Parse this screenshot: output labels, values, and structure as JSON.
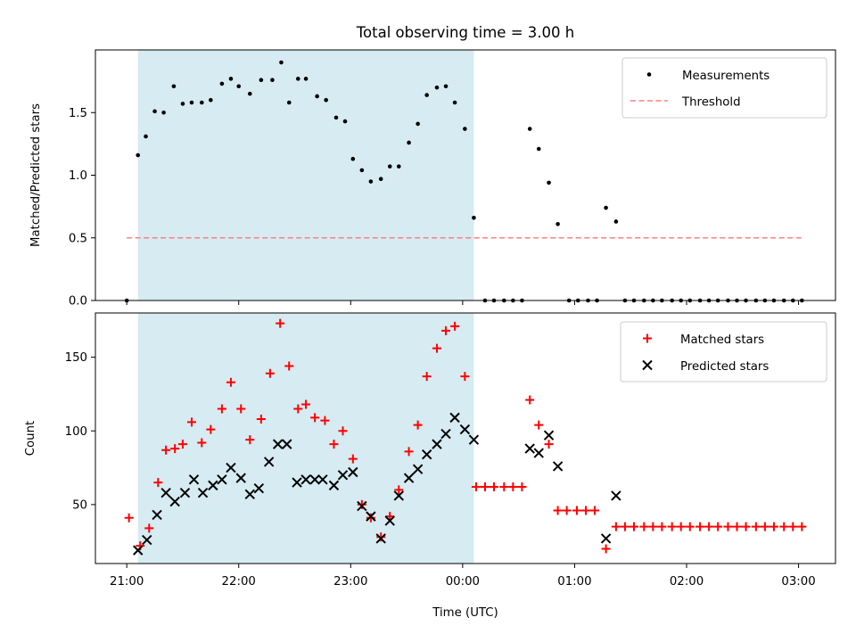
{
  "chart_data": [
    {
      "type": "scatter",
      "title": "Total observing time = 3.00 h",
      "xlabel": "",
      "ylabel": "Matched/Predicted stars",
      "x_unit": "hours after 21:00 UTC",
      "xlim": [
        -0.28,
        6.33
      ],
      "ylim": [
        0.0,
        2.0
      ],
      "yticks": [
        0.0,
        0.5,
        1.0,
        1.5
      ],
      "ytick_labels": [
        "0.0",
        "0.5",
        "1.0",
        "1.5"
      ],
      "xticks": [
        0,
        1,
        2,
        3,
        4,
        5,
        6
      ],
      "shaded_span": [
        0.1,
        3.1
      ],
      "shade_color": "#add8e6",
      "legend": {
        "placement": "top-right",
        "entries": [
          "Measurements",
          "Threshold"
        ]
      },
      "threshold": {
        "name": "Threshold",
        "y": 0.5,
        "x_range": [
          0,
          6.05
        ],
        "color": "#ff7f7f",
        "style": "dashed"
      },
      "series": [
        {
          "name": "Measurements",
          "color": "#000000",
          "points": [
            [
              0.0,
              0.0
            ],
            [
              0.1,
              1.16
            ],
            [
              0.17,
              1.31
            ],
            [
              0.25,
              1.51
            ],
            [
              0.33,
              1.5
            ],
            [
              0.42,
              1.71
            ],
            [
              0.5,
              1.57
            ],
            [
              0.58,
              1.58
            ],
            [
              0.67,
              1.58
            ],
            [
              0.75,
              1.6
            ],
            [
              0.85,
              1.73
            ],
            [
              0.93,
              1.77
            ],
            [
              1.0,
              1.71
            ],
            [
              1.1,
              1.65
            ],
            [
              1.2,
              1.76
            ],
            [
              1.3,
              1.76
            ],
            [
              1.38,
              1.9
            ],
            [
              1.45,
              1.58
            ],
            [
              1.53,
              1.77
            ],
            [
              1.6,
              1.77
            ],
            [
              1.7,
              1.63
            ],
            [
              1.78,
              1.6
            ],
            [
              1.87,
              1.46
            ],
            [
              1.95,
              1.43
            ],
            [
              2.02,
              1.13
            ],
            [
              2.1,
              1.04
            ],
            [
              2.18,
              0.95
            ],
            [
              2.27,
              0.97
            ],
            [
              2.35,
              1.07
            ],
            [
              2.43,
              1.07
            ],
            [
              2.52,
              1.26
            ],
            [
              2.6,
              1.41
            ],
            [
              2.68,
              1.64
            ],
            [
              2.77,
              1.7
            ],
            [
              2.85,
              1.71
            ],
            [
              2.93,
              1.58
            ],
            [
              3.02,
              1.37
            ],
            [
              3.1,
              0.66
            ],
            [
              3.2,
              0.0
            ],
            [
              3.28,
              0.0
            ],
            [
              3.37,
              0.0
            ],
            [
              3.45,
              0.0
            ],
            [
              3.53,
              0.0
            ],
            [
              3.6,
              1.37
            ],
            [
              3.68,
              1.21
            ],
            [
              3.77,
              0.94
            ],
            [
              3.85,
              0.61
            ],
            [
              3.95,
              0.0
            ],
            [
              4.03,
              0.0
            ],
            [
              4.12,
              0.0
            ],
            [
              4.2,
              0.0
            ],
            [
              4.28,
              0.74
            ],
            [
              4.37,
              0.63
            ],
            [
              4.45,
              0.0
            ],
            [
              4.53,
              0.0
            ],
            [
              4.62,
              0.0
            ],
            [
              4.7,
              0.0
            ],
            [
              4.78,
              0.0
            ],
            [
              4.87,
              0.0
            ],
            [
              4.95,
              0.0
            ],
            [
              5.03,
              0.0
            ],
            [
              5.12,
              0.0
            ],
            [
              5.2,
              0.0
            ],
            [
              5.28,
              0.0
            ],
            [
              5.37,
              0.0
            ],
            [
              5.45,
              0.0
            ],
            [
              5.53,
              0.0
            ],
            [
              5.62,
              0.0
            ],
            [
              5.7,
              0.0
            ],
            [
              5.78,
              0.0
            ],
            [
              5.87,
              0.0
            ],
            [
              5.95,
              0.0
            ],
            [
              6.03,
              0.0
            ]
          ]
        }
      ]
    },
    {
      "type": "scatter",
      "title": "",
      "xlabel": "Time (UTC)",
      "ylabel": "Count",
      "x_unit": "hours after 21:00 UTC",
      "xlim": [
        -0.28,
        6.33
      ],
      "ylim": [
        10,
        180
      ],
      "yticks": [
        50,
        100,
        150
      ],
      "ytick_labels": [
        "50",
        "100",
        "150"
      ],
      "xticks": [
        0,
        1,
        2,
        3,
        4,
        5,
        6
      ],
      "xtick_labels": [
        "21:00",
        "22:00",
        "23:00",
        "00:00",
        "01:00",
        "02:00",
        "03:00"
      ],
      "shaded_span": [
        0.1,
        3.1
      ],
      "shade_color": "#add8e6",
      "legend": {
        "placement": "top-right",
        "entries": [
          "Matched stars",
          "Predicted stars"
        ]
      },
      "series": [
        {
          "name": "Matched stars",
          "marker": "plus",
          "color": "#ff0000",
          "points": [
            [
              0.02,
              41
            ],
            [
              0.12,
              22
            ],
            [
              0.2,
              34
            ],
            [
              0.28,
              65
            ],
            [
              0.35,
              87
            ],
            [
              0.43,
              88
            ],
            [
              0.5,
              91
            ],
            [
              0.58,
              106
            ],
            [
              0.67,
              92
            ],
            [
              0.75,
              101
            ],
            [
              0.85,
              115
            ],
            [
              0.93,
              133
            ],
            [
              1.02,
              115
            ],
            [
              1.1,
              94
            ],
            [
              1.2,
              108
            ],
            [
              1.28,
              139
            ],
            [
              1.37,
              173
            ],
            [
              1.45,
              144
            ],
            [
              1.53,
              115
            ],
            [
              1.6,
              118
            ],
            [
              1.68,
              109
            ],
            [
              1.77,
              107
            ],
            [
              1.85,
              91
            ],
            [
              1.93,
              100
            ],
            [
              2.02,
              81
            ],
            [
              2.1,
              50
            ],
            [
              2.18,
              41
            ],
            [
              2.27,
              28
            ],
            [
              2.35,
              42
            ],
            [
              2.43,
              60
            ],
            [
              2.52,
              86
            ],
            [
              2.6,
              104
            ],
            [
              2.68,
              137
            ],
            [
              2.77,
              156
            ],
            [
              2.85,
              168
            ],
            [
              2.93,
              171
            ],
            [
              3.02,
              137
            ],
            [
              3.12,
              62
            ],
            [
              3.2,
              62
            ],
            [
              3.28,
              62
            ],
            [
              3.37,
              62
            ],
            [
              3.45,
              62
            ],
            [
              3.53,
              62
            ],
            [
              3.6,
              121
            ],
            [
              3.68,
              104
            ],
            [
              3.77,
              91
            ],
            [
              3.85,
              46
            ],
            [
              3.93,
              46
            ],
            [
              4.02,
              46
            ],
            [
              4.1,
              46
            ],
            [
              4.18,
              46
            ],
            [
              4.28,
              20
            ],
            [
              4.37,
              35
            ],
            [
              4.45,
              35
            ],
            [
              4.53,
              35
            ],
            [
              4.62,
              35
            ],
            [
              4.7,
              35
            ],
            [
              4.78,
              35
            ],
            [
              4.87,
              35
            ],
            [
              4.95,
              35
            ],
            [
              5.03,
              35
            ],
            [
              5.12,
              35
            ],
            [
              5.2,
              35
            ],
            [
              5.28,
              35
            ],
            [
              5.37,
              35
            ],
            [
              5.45,
              35
            ],
            [
              5.53,
              35
            ],
            [
              5.62,
              35
            ],
            [
              5.7,
              35
            ],
            [
              5.78,
              35
            ],
            [
              5.87,
              35
            ],
            [
              5.95,
              35
            ],
            [
              6.03,
              35
            ]
          ]
        },
        {
          "name": "Predicted stars",
          "marker": "x",
          "color": "#000000",
          "points": [
            [
              0.1,
              19
            ],
            [
              0.18,
              26
            ],
            [
              0.27,
              43
            ],
            [
              0.35,
              58
            ],
            [
              0.43,
              52
            ],
            [
              0.52,
              58
            ],
            [
              0.6,
              67
            ],
            [
              0.68,
              58
            ],
            [
              0.77,
              63
            ],
            [
              0.85,
              67
            ],
            [
              0.93,
              75
            ],
            [
              1.02,
              68
            ],
            [
              1.1,
              57
            ],
            [
              1.18,
              61
            ],
            [
              1.27,
              79
            ],
            [
              1.35,
              91
            ],
            [
              1.43,
              91
            ],
            [
              1.52,
              65
            ],
            [
              1.6,
              67
            ],
            [
              1.68,
              67
            ],
            [
              1.75,
              67
            ],
            [
              1.85,
              63
            ],
            [
              1.93,
              70
            ],
            [
              2.02,
              72
            ],
            [
              2.1,
              49
            ],
            [
              2.18,
              42
            ],
            [
              2.27,
              27
            ],
            [
              2.35,
              39
            ],
            [
              2.43,
              56
            ],
            [
              2.52,
              68
            ],
            [
              2.6,
              74
            ],
            [
              2.68,
              84
            ],
            [
              2.77,
              91
            ],
            [
              2.85,
              98
            ],
            [
              2.93,
              109
            ],
            [
              3.02,
              101
            ],
            [
              3.1,
              94
            ],
            [
              3.6,
              88
            ],
            [
              3.68,
              85
            ],
            [
              3.77,
              97
            ],
            [
              3.85,
              76
            ],
            [
              4.28,
              27
            ],
            [
              4.37,
              56
            ]
          ]
        }
      ]
    }
  ]
}
